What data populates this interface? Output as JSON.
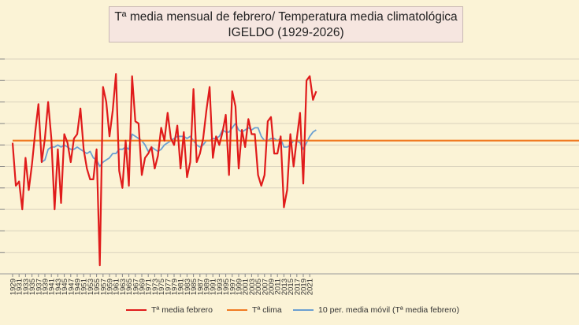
{
  "chart_data": {
    "type": "line",
    "title": "Tª media mensual de febrero/ Temperatura media climatológica",
    "subtitle": "IGELDO (1929-2026)",
    "x_tick_labels": [
      "1929",
      "1931",
      "1933",
      "1935",
      "1937",
      "1939",
      "1941",
      "1943",
      "1945",
      "1947",
      "1949",
      "1951",
      "1953",
      "1955",
      "1957",
      "1959",
      "1961",
      "1963",
      "1965",
      "1967",
      "1969",
      "1971",
      "1973",
      "1975",
      "1977",
      "1979",
      "1981",
      "1983",
      "1985",
      "1987",
      "1989",
      "1991",
      "1993",
      "1995",
      "1997",
      "1999",
      "2001",
      "2003",
      "2005",
      "2007",
      "2009",
      "2011",
      "2013",
      "2015",
      "2017",
      "2019",
      "2021"
    ],
    "ylim": [
      2.0,
      12.0
    ],
    "y_gridlines": [
      2,
      3,
      4,
      5,
      6,
      7,
      8,
      9,
      10,
      11,
      12
    ],
    "x_start": 1929,
    "series": [
      {
        "name": "Tª media febrero",
        "color": "#e01b1b",
        "values": [
          8.1,
          6.1,
          6.3,
          5.0,
          7.4,
          5.9,
          7.1,
          8.6,
          9.9,
          7.2,
          8.3,
          10.0,
          8.3,
          5.0,
          7.8,
          5.3,
          8.5,
          8.1,
          7.2,
          8.3,
          8.5,
          9.7,
          7.8,
          6.9,
          6.4,
          6.4,
          7.8,
          2.4,
          10.7,
          10.0,
          8.4,
          9.6,
          11.3,
          6.8,
          6.0,
          8.2,
          6.1,
          11.2,
          9.1,
          9.0,
          6.6,
          7.4,
          7.6,
          7.9,
          6.9,
          7.5,
          8.8,
          8.2,
          9.5,
          8.3,
          8.0,
          8.9,
          6.9,
          8.6,
          6.5,
          7.2,
          10.6,
          7.2,
          7.6,
          8.3,
          9.6,
          10.7,
          7.4,
          8.4,
          8.0,
          8.6,
          9.4,
          6.6,
          10.5,
          9.8,
          6.9,
          8.7,
          7.9,
          9.2,
          8.5,
          8.5,
          6.6,
          6.1,
          6.6,
          9.1,
          9.3,
          7.6,
          7.6,
          8.4,
          5.1,
          5.9,
          8.5,
          7.0,
          8.3,
          9.5,
          6.2,
          11.0,
          11.2,
          10.1,
          10.5
        ]
      },
      {
        "name": "Tª clima",
        "color": "#f07a22",
        "values": [
          8.2
        ]
      },
      {
        "name": "10 per. media móvil (Tª media febrero)",
        "color": "#6b9fd1",
        "values": [
          null,
          null,
          null,
          null,
          null,
          null,
          null,
          null,
          null,
          7.2,
          7.3,
          7.8,
          7.9,
          7.9,
          8.0,
          7.9,
          8.0,
          7.9,
          7.8,
          7.8,
          7.9,
          7.8,
          7.7,
          7.6,
          7.7,
          7.4,
          7.3,
          7.0,
          7.2,
          7.3,
          7.4,
          7.6,
          7.6,
          7.8,
          7.8,
          7.9,
          7.8,
          8.5,
          8.4,
          8.3,
          8.2,
          8.0,
          7.7,
          7.9,
          7.8,
          7.7,
          7.8,
          8.0,
          8.1,
          8.2,
          8.3,
          8.4,
          8.4,
          8.4,
          8.3,
          8.4,
          8.2,
          8.0,
          7.9,
          8.0,
          8.2,
          8.2,
          8.3,
          8.3,
          8.4,
          8.7,
          8.6,
          8.6,
          8.8,
          9.0,
          8.7,
          8.6,
          8.7,
          8.8,
          8.7,
          8.8,
          8.8,
          8.4,
          8.2,
          8.2,
          8.3,
          8.3,
          8.2,
          8.3,
          7.9,
          7.9,
          8.0,
          8.2,
          8.2,
          8.1,
          7.8,
          8.1,
          8.4,
          8.6,
          8.7
        ]
      }
    ],
    "legend_position": "bottom"
  },
  "legend": {
    "items": [
      {
        "label": "Tª media febrero",
        "color": "#e01b1b"
      },
      {
        "label": "Tª clima",
        "color": "#f07a22"
      },
      {
        "label": "10 per. media móvil (Tª media febrero)",
        "color": "#6b9fd1"
      }
    ]
  }
}
